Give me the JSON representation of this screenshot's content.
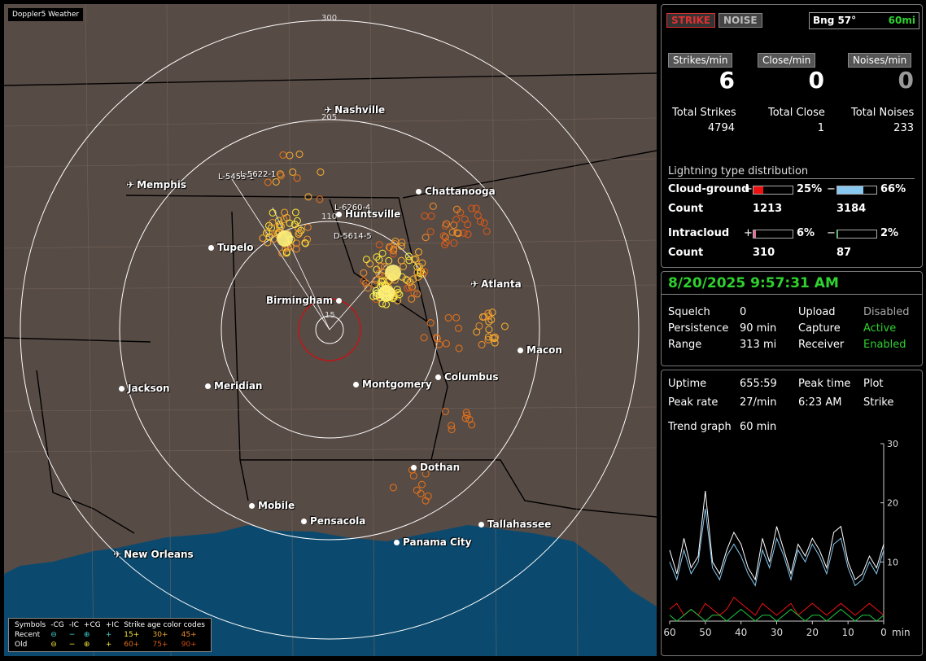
{
  "app": {
    "title": "Doppler5 Weather"
  },
  "map": {
    "range_labels": [
      "300",
      "205",
      "110",
      "15"
    ],
    "cities": [
      {
        "name": "Nashville",
        "icon": "plane"
      },
      {
        "name": "Memphis",
        "icon": "plane"
      },
      {
        "name": "Chattanooga",
        "icon": "dot"
      },
      {
        "name": "Huntsville",
        "icon": "dot"
      },
      {
        "name": "Tupelo",
        "icon": "dot"
      },
      {
        "name": "Atlanta",
        "icon": "plane"
      },
      {
        "name": "Birmingham",
        "icon": "dot"
      },
      {
        "name": "Macon",
        "icon": "dot"
      },
      {
        "name": "Jackson",
        "icon": "dot"
      },
      {
        "name": "Meridian",
        "icon": "dot"
      },
      {
        "name": "Montgomery",
        "icon": "dot"
      },
      {
        "name": "Columbus",
        "icon": "dot"
      },
      {
        "name": "Dothan",
        "icon": "dot"
      },
      {
        "name": "Mobile",
        "icon": "dot"
      },
      {
        "name": "Pensacola",
        "icon": "dot"
      },
      {
        "name": "Tallahassee",
        "icon": "dot"
      },
      {
        "name": "Panama City",
        "icon": "dot"
      },
      {
        "name": "New Orleans",
        "icon": "plane"
      }
    ],
    "strike_labels": [
      "L-5455-1",
      "L-5622-1",
      "L-6260-4",
      "D-5614-5"
    ],
    "legend": {
      "header": [
        "Symbols",
        "-CG",
        "-IC",
        "+CG",
        "+IC",
        "Strike age color codes"
      ],
      "recent": {
        "label": "Recent",
        "ages": [
          "15+",
          "30+",
          "45+"
        ]
      },
      "old": {
        "label": "Old",
        "ages": [
          "60+",
          "75+",
          "90+"
        ]
      }
    },
    "colors": {
      "land": "#574b45",
      "water": "#0b4a6e",
      "range_ring": "#ffffff",
      "close_ring": "#cc1111"
    }
  },
  "panel1": {
    "strike_btn": "STRIKE",
    "noise_btn": "NOISE",
    "bearing": "Bng 57°",
    "range": "60mi",
    "strikes_per_min_label": "Strikes/min",
    "close_per_min_label": "Close/min",
    "noises_per_min_label": "Noises/min",
    "strikes_per_min": "6",
    "close_per_min": "0",
    "noises_per_min": "0",
    "total_strikes_label": "Total Strikes",
    "total_close_label": "Total Close",
    "total_noises_label": "Total Noises",
    "total_strikes": "4794",
    "total_close": "1",
    "total_noises": "233",
    "dist_title": "Lightning type distribution",
    "cg_label": "Cloud-ground",
    "ic_label": "Intracloud",
    "count_label": "Count",
    "plus": "+",
    "minus": "−",
    "cg_pos_pct": "25%",
    "cg_neg_pct": "66%",
    "cg_pos_count": "1213",
    "cg_neg_count": "3184",
    "ic_pos_pct": "6%",
    "ic_neg_pct": "2%",
    "ic_pos_count": "310",
    "ic_neg_count": "87",
    "bar_colors": {
      "cg_pos": "#ee1111",
      "cg_neg": "#88c8f0",
      "ic_pos": "#e06fa0",
      "ic_neg": "#22cc44"
    }
  },
  "panel2": {
    "datetime": "8/20/2025 9:57:31 AM",
    "rows": [
      {
        "k1": "Squelch",
        "v1": "0",
        "k2": "Upload",
        "v2": "Disabled"
      },
      {
        "k1": "Persistence",
        "v1": "90 min",
        "k2": "Capture",
        "v2": "Active"
      },
      {
        "k1": "Range",
        "v1": "313 mi",
        "k2": "Receiver",
        "v2": "Enabled"
      }
    ]
  },
  "panel3": {
    "uptime_label": "Uptime",
    "uptime": "655:59",
    "peak_time_label": "Peak time",
    "plot_label": "Plot",
    "peak_rate_label": "Peak rate",
    "peak_rate": "27/min",
    "peak_time": "6:23 AM",
    "plot": "Strike",
    "trend_label": "Trend graph",
    "trend_value": "60 min",
    "graph": {
      "y_ticks": [
        "30",
        "20",
        "10"
      ],
      "x_ticks": [
        "60",
        "50",
        "40",
        "30",
        "20",
        "10",
        "0"
      ],
      "x_unit": "min"
    }
  },
  "chart_data": {
    "type": "line",
    "x": [
      60,
      58,
      56,
      54,
      52,
      50,
      48,
      46,
      44,
      42,
      40,
      38,
      36,
      34,
      32,
      30,
      28,
      26,
      24,
      22,
      20,
      18,
      16,
      14,
      12,
      10,
      8,
      6,
      4,
      2,
      0
    ],
    "series": [
      {
        "color": "#ffffff",
        "values": [
          12,
          8,
          14,
          9,
          11,
          22,
          10,
          8,
          12,
          15,
          13,
          9,
          7,
          14,
          10,
          16,
          12,
          8,
          13,
          11,
          14,
          12,
          9,
          15,
          16,
          10,
          7,
          8,
          11,
          9,
          13
        ]
      },
      {
        "color": "#88c8f0",
        "values": [
          10,
          7,
          12,
          8,
          10,
          19,
          9,
          7,
          11,
          13,
          11,
          8,
          6,
          12,
          9,
          14,
          11,
          7,
          12,
          10,
          13,
          11,
          8,
          13,
          14,
          9,
          6,
          7,
          10,
          8,
          12
        ]
      },
      {
        "color": "#ee1111",
        "values": [
          2,
          3,
          1,
          2,
          1,
          3,
          2,
          1,
          2,
          4,
          3,
          2,
          1,
          3,
          2,
          1,
          2,
          3,
          1,
          2,
          3,
          2,
          1,
          2,
          3,
          2,
          1,
          2,
          3,
          2,
          1
        ]
      },
      {
        "color": "#22cc44",
        "values": [
          1,
          0,
          1,
          2,
          1,
          0,
          1,
          1,
          0,
          1,
          2,
          1,
          0,
          1,
          1,
          0,
          1,
          2,
          1,
          0,
          1,
          1,
          0,
          1,
          2,
          1,
          0,
          1,
          1,
          0,
          1
        ]
      }
    ],
    "ylim": [
      0,
      30
    ],
    "xlim": [
      60,
      0
    ]
  }
}
